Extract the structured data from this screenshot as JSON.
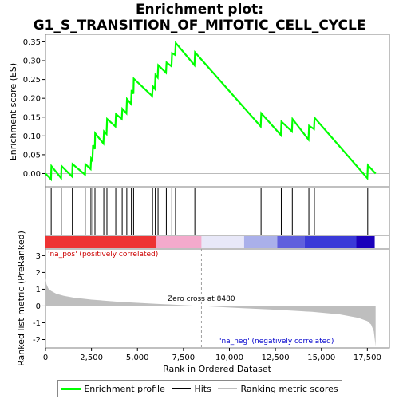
{
  "title": "Enrichment plot: G1_S_TRANSITION_OF_MITOTIC_CELL_CYCLE",
  "colors": {
    "enrichment": "#00ff00",
    "hits": "#000000",
    "ranking": "#bebebe",
    "zero_cross_line": "#a0a0a0",
    "pos_label": "#cc0000",
    "neg_label": "#0000cc"
  },
  "legend": {
    "enrichment_label": "Enrichment profile",
    "hits_label": "Hits",
    "ranking_label": "Ranking metric scores"
  },
  "annotations": {
    "pos_label": "'na_pos' (positively correlated)",
    "neg_label": "'na_neg' (negatively correlated)",
    "zero_cross": "Zero cross at 8480"
  },
  "chart_data": [
    {
      "type": "line",
      "panel": "enrichment",
      "ylabel": "Enrichment score (ES)",
      "xlim": [
        0,
        18700
      ],
      "ylim": [
        -0.035,
        0.37
      ],
      "yticks": [
        0.0,
        0.05,
        0.1,
        0.15,
        0.2,
        0.25,
        0.3,
        0.35
      ],
      "ytick_labels": [
        "0.00",
        "0.05",
        "0.10",
        "0.15",
        "0.20",
        "0.25",
        "0.30",
        "0.35"
      ],
      "grid": false,
      "series": [
        {
          "name": "Enrichment profile",
          "x": [
            0,
            300,
            320,
            850,
            870,
            1450,
            1470,
            2150,
            2170,
            2450,
            2480,
            2550,
            2580,
            2680,
            2700,
            3150,
            3180,
            3320,
            3350,
            3800,
            3830,
            4150,
            4180,
            4400,
            4430,
            4650,
            4680,
            4780,
            4800,
            5800,
            5830,
            5950,
            5980,
            6100,
            6130,
            6550,
            6580,
            6850,
            6880,
            7050,
            7080,
            8100,
            8130,
            11700,
            11730,
            12800,
            12830,
            13400,
            13430,
            14300,
            14330,
            14600,
            14630,
            17500,
            17530,
            17950
          ],
          "y": [
            0.0,
            -0.015,
            0.02,
            -0.012,
            0.02,
            -0.008,
            0.025,
            -0.003,
            0.025,
            0.012,
            0.04,
            0.035,
            0.075,
            0.065,
            0.107,
            0.08,
            0.112,
            0.105,
            0.145,
            0.125,
            0.158,
            0.145,
            0.172,
            0.16,
            0.198,
            0.185,
            0.222,
            0.212,
            0.252,
            0.206,
            0.232,
            0.225,
            0.262,
            0.255,
            0.288,
            0.268,
            0.295,
            0.285,
            0.32,
            0.315,
            0.347,
            0.288,
            0.322,
            0.125,
            0.16,
            0.102,
            0.138,
            0.112,
            0.145,
            0.09,
            0.127,
            0.118,
            0.148,
            -0.012,
            0.022,
            0.0
          ]
        }
      ]
    },
    {
      "type": "scatter",
      "panel": "hits",
      "series": [
        {
          "name": "Hits",
          "x": [
            310,
            860,
            1460,
            2160,
            2470,
            2570,
            2690,
            3170,
            3340,
            3820,
            4170,
            4420,
            4670,
            4790,
            5820,
            5970,
            6120,
            6570,
            6870,
            7070,
            8120,
            11720,
            12820,
            13420,
            14320,
            14620,
            17520
          ]
        }
      ]
    },
    {
      "type": "heatmap",
      "panel": "rank-colorbar",
      "bands": [
        {
          "from": 0,
          "to": 6000,
          "color": "#ee3333"
        },
        {
          "from": 6000,
          "to": 8480,
          "color": "#f4aacc"
        },
        {
          "from": 8480,
          "to": 10800,
          "color": "#e8e8f8"
        },
        {
          "from": 10800,
          "to": 12600,
          "color": "#aab0ea"
        },
        {
          "from": 12600,
          "to": 14100,
          "color": "#6060dd"
        },
        {
          "from": 14100,
          "to": 16900,
          "color": "#3a3ad8"
        },
        {
          "from": 16900,
          "to": 17900,
          "color": "#1a00bb"
        }
      ]
    },
    {
      "type": "area",
      "panel": "ranking",
      "xlabel": "Rank in Ordered Dataset",
      "ylabel": "Ranked list metric (PreRanked)",
      "xlim": [
        0,
        18700
      ],
      "ylim": [
        -2.5,
        3.4
      ],
      "xticks": [
        0,
        2500,
        5000,
        7500,
        10000,
        12500,
        15000,
        17500
      ],
      "xtick_labels": [
        "0",
        "2,500",
        "5,000",
        "7,500",
        "10,000",
        "12,500",
        "15,000",
        "17,500"
      ],
      "yticks": [
        -2,
        -1,
        0,
        1,
        2,
        3
      ],
      "ytick_labels": [
        "-2",
        "-1",
        "0",
        "1",
        "2",
        "3"
      ],
      "zero_cross": 8480,
      "series": [
        {
          "name": "Ranking metric scores",
          "x": [
            0,
            50,
            150,
            300,
            600,
            1000,
            1500,
            2500,
            4000,
            6000,
            8480,
            10500,
            12500,
            14500,
            16000,
            17000,
            17500,
            17700,
            17850,
            17950
          ],
          "y": [
            1.7,
            1.3,
            1.05,
            0.9,
            0.72,
            0.6,
            0.5,
            0.38,
            0.25,
            0.13,
            0.0,
            -0.12,
            -0.22,
            -0.35,
            -0.5,
            -0.7,
            -0.9,
            -1.1,
            -1.5,
            -2.4
          ]
        }
      ]
    }
  ]
}
